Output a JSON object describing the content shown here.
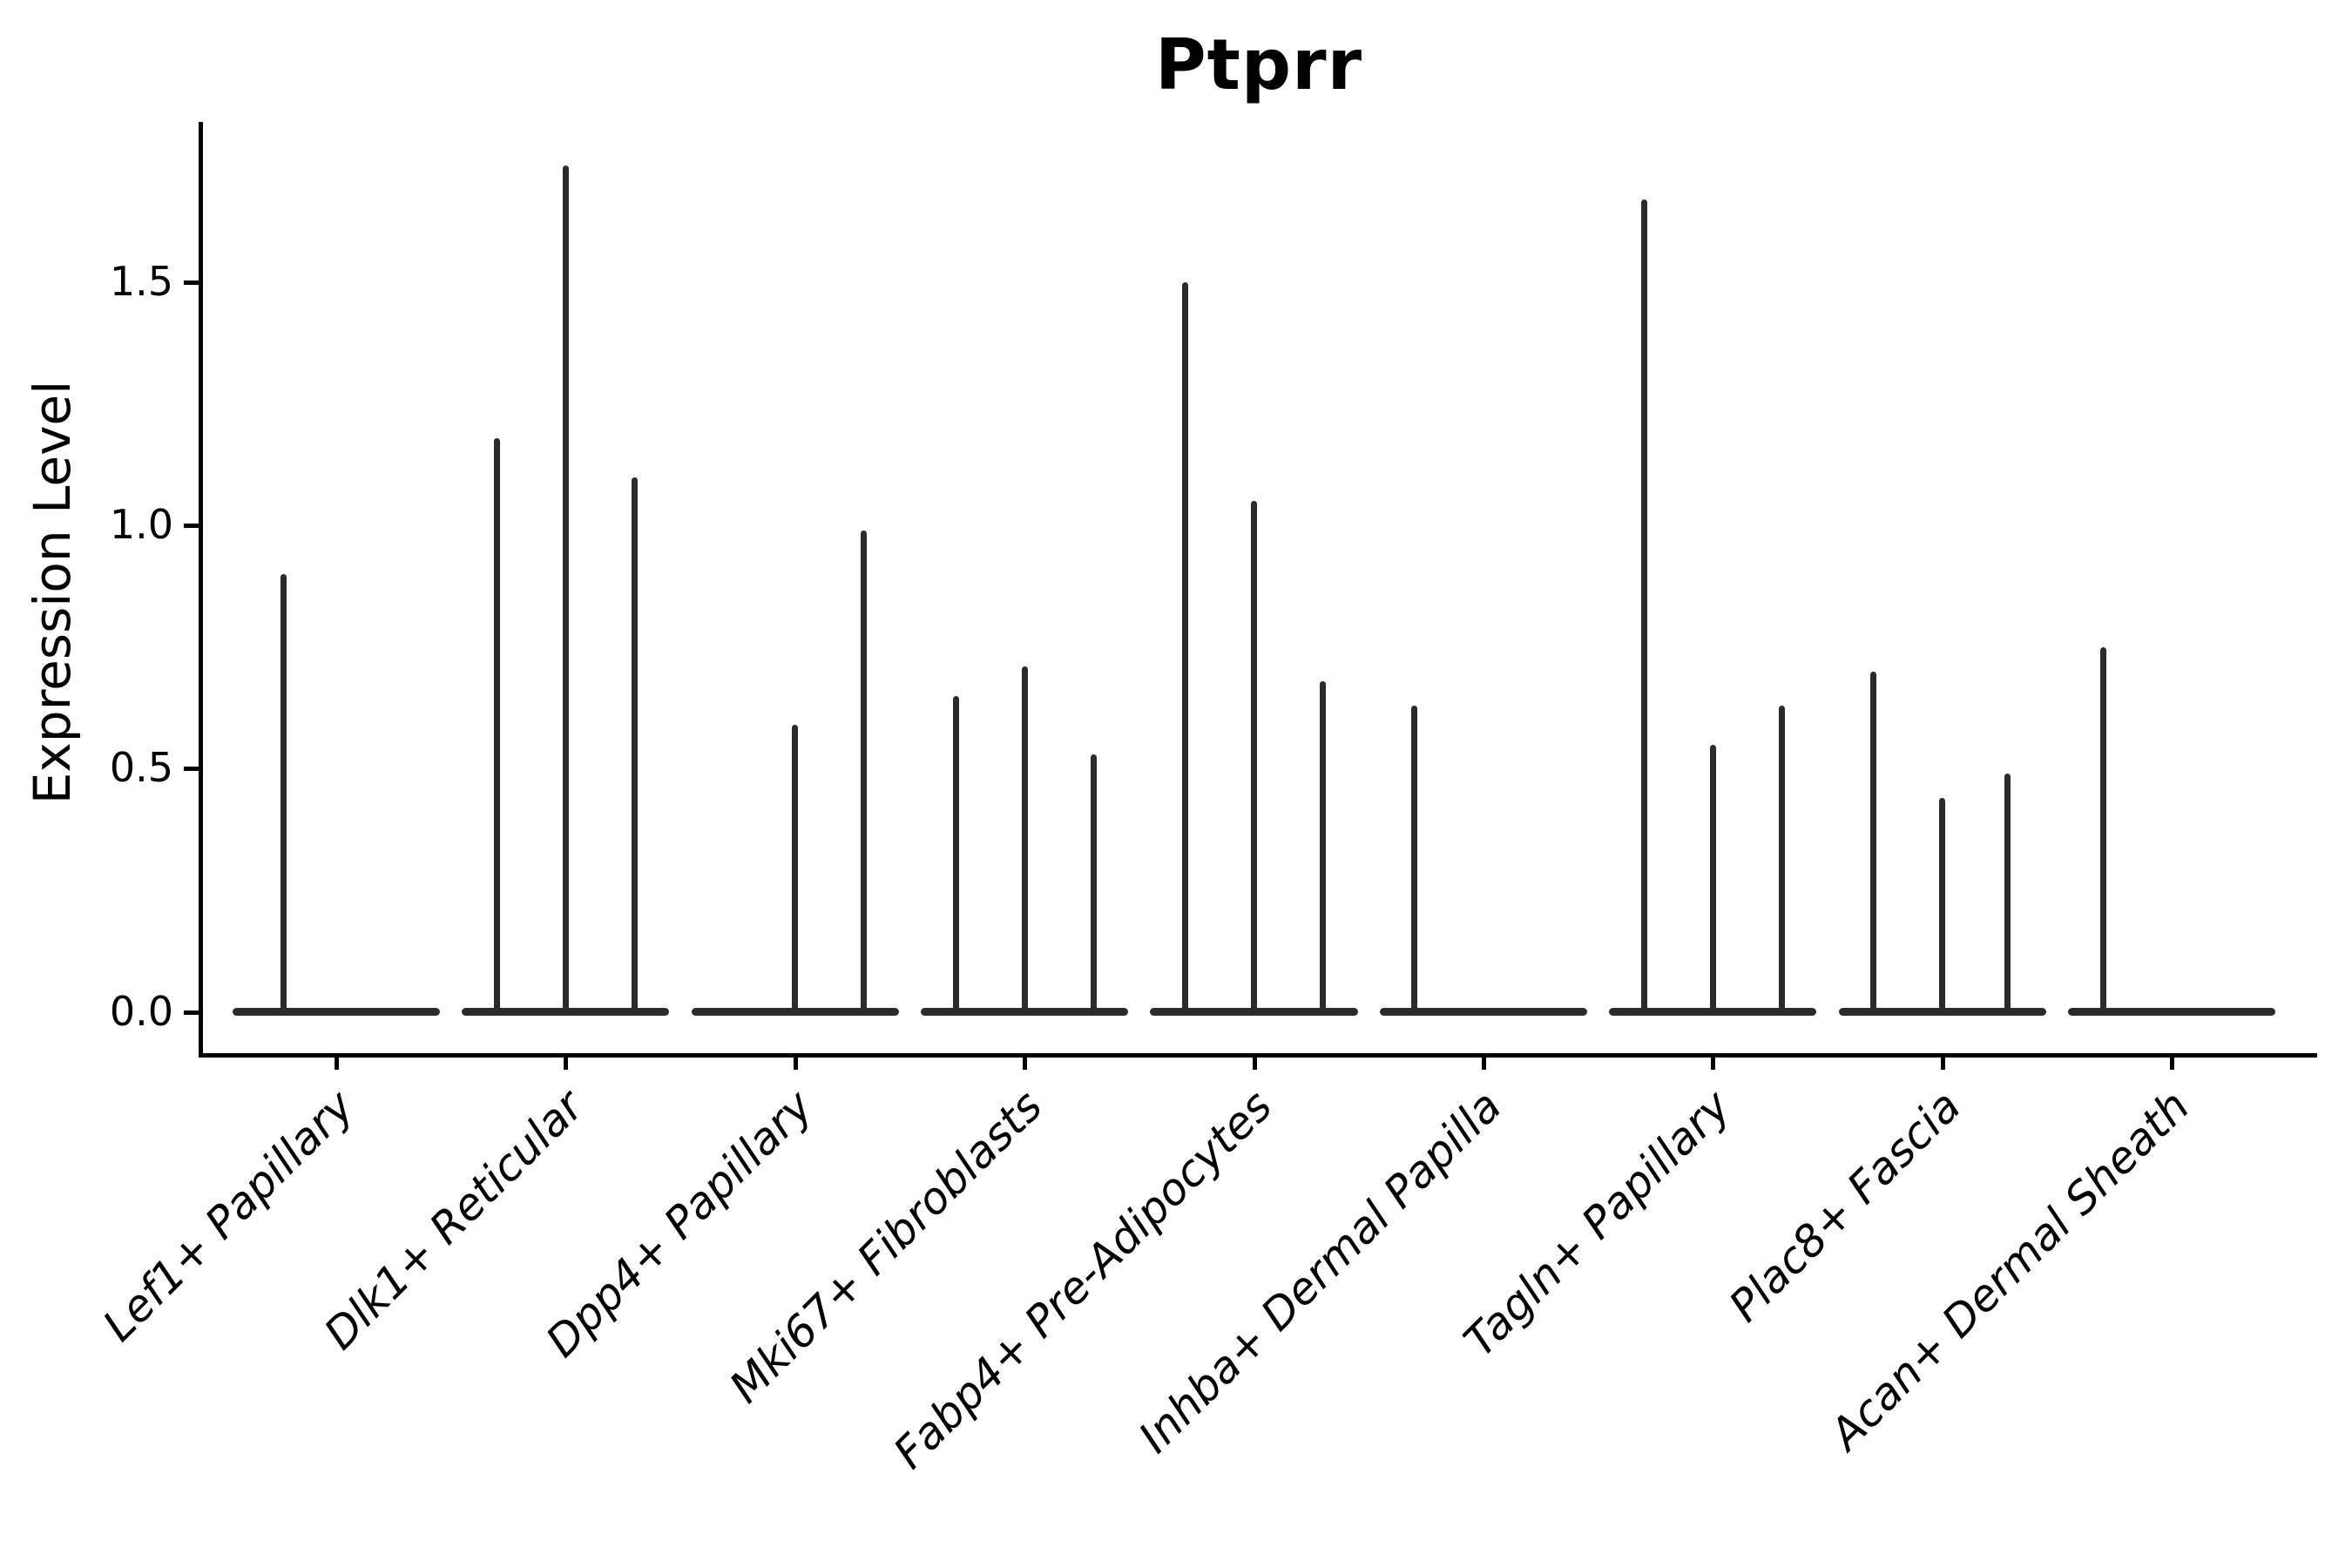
{
  "chart_data": {
    "type": "violin",
    "title": "Ptprr",
    "ylabel": "Expression Level",
    "xlabel": "",
    "legend": "none",
    "grid": false,
    "line_color": "#2b2b2b",
    "axis_color": "#000000",
    "ylim": [
      -0.085,
      1.83
    ],
    "yticks": [
      {
        "label": "0.0",
        "value": 0.0
      },
      {
        "label": "0.5",
        "value": 0.5
      },
      {
        "label": "1.0",
        "value": 1.0
      },
      {
        "label": "1.5",
        "value": 1.5
      }
    ],
    "categories": [
      "Lef1+ Papillary",
      "Dlk1+ Reticular",
      "Dpp4+ Papillary",
      "Mki67+ Fibroblasts",
      "Fabp4+ Pre-Adipocytes",
      "Inhba+ Dermal Papilla",
      "Tagln+ Papillary",
      "Plac8+ Fascia",
      "Acan+ Dermal Sheath"
    ],
    "violins": [
      {
        "category": "Lef1+ Papillary",
        "baseline_value": 0.0,
        "baseline_halfwidth": 0.452,
        "spikes": [
          {
            "offset": -0.23,
            "value": 0.9
          }
        ]
      },
      {
        "category": "Dlk1+ Reticular",
        "baseline_value": 0.0,
        "baseline_halfwidth": 0.452,
        "spikes": [
          {
            "offset": -0.3,
            "value": 1.18
          },
          {
            "offset": 0.0,
            "value": 1.74
          },
          {
            "offset": 0.3,
            "value": 1.1
          }
        ]
      },
      {
        "category": "Dpp4+ Papillary",
        "baseline_value": 0.0,
        "baseline_halfwidth": 0.452,
        "spikes": [
          {
            "offset": 0.0,
            "value": 0.59
          },
          {
            "offset": 0.3,
            "value": 0.99
          }
        ]
      },
      {
        "category": "Mki67+ Fibroblasts",
        "baseline_value": 0.0,
        "baseline_halfwidth": 0.452,
        "spikes": [
          {
            "offset": -0.3,
            "value": 0.65
          },
          {
            "offset": 0.0,
            "value": 0.71
          },
          {
            "offset": 0.3,
            "value": 0.53
          }
        ]
      },
      {
        "category": "Fabp4+ Pre-Adipocytes",
        "baseline_value": 0.0,
        "baseline_halfwidth": 0.452,
        "spikes": [
          {
            "offset": -0.3,
            "value": 1.5
          },
          {
            "offset": 0.0,
            "value": 1.05
          },
          {
            "offset": 0.3,
            "value": 0.68
          }
        ]
      },
      {
        "category": "Inhba+ Dermal Papilla",
        "baseline_value": 0.0,
        "baseline_halfwidth": 0.452,
        "spikes": [
          {
            "offset": -0.3,
            "value": 0.63
          }
        ]
      },
      {
        "category": "Tagln+ Papillary",
        "baseline_value": 0.0,
        "baseline_halfwidth": 0.452,
        "spikes": [
          {
            "offset": -0.3,
            "value": 1.67
          },
          {
            "offset": 0.0,
            "value": 0.55
          },
          {
            "offset": 0.3,
            "value": 0.63
          }
        ]
      },
      {
        "category": "Plac8+ Fascia",
        "baseline_value": 0.0,
        "baseline_halfwidth": 0.452,
        "spikes": [
          {
            "offset": -0.3,
            "value": 0.7
          },
          {
            "offset": 0.0,
            "value": 0.44
          },
          {
            "offset": 0.285,
            "value": 0.49
          }
        ]
      },
      {
        "category": "Acan+ Dermal Sheath",
        "baseline_value": 0.0,
        "baseline_halfwidth": 0.452,
        "spikes": [
          {
            "offset": -0.3,
            "value": 0.75
          }
        ]
      }
    ]
  }
}
